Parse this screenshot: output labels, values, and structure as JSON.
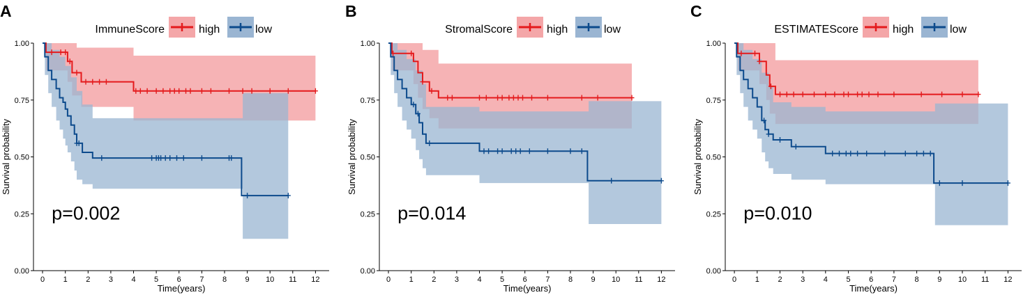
{
  "figure": {
    "panels": [
      {
        "letter": "A",
        "legend_title": "ImmuneScore",
        "p_value": "p=0.002"
      },
      {
        "letter": "B",
        "legend_title": "StromalScore",
        "p_value": "p=0.014"
      },
      {
        "letter": "C",
        "legend_title": "ESTIMATEScore",
        "p_value": "p=0.010"
      }
    ],
    "colors": {
      "high_line": "#e41a1c",
      "high_band": "#f4a6a8",
      "low_line": "#0c4a8c",
      "low_band": "#9ab5d2",
      "axis": "#000000"
    }
  },
  "chart_data": [
    {
      "type": "line",
      "title": "ImmuneScore",
      "xlabel": "Time(years)",
      "ylabel": "Survival probability",
      "xlim": [
        -0.4,
        12.6
      ],
      "ylim": [
        0,
        1
      ],
      "x_ticks": [
        0,
        1,
        2,
        3,
        4,
        5,
        6,
        7,
        8,
        9,
        10,
        11,
        12
      ],
      "y_ticks": [
        0,
        0.25,
        0.5,
        0.75,
        1
      ],
      "y_tick_labels": [
        "0.00",
        "0.25",
        "0.50",
        "0.75",
        "1.00"
      ],
      "annotation": "p=0.002",
      "series": [
        {
          "name": "high",
          "step": [
            [
              0,
              1
            ],
            [
              0.15,
              0.96
            ],
            [
              1.1,
              0.92
            ],
            [
              1.3,
              0.87
            ],
            [
              1.7,
              0.83
            ],
            [
              4.0,
              0.79
            ],
            [
              12.0,
              0.79
            ]
          ],
          "ci_upper": [
            [
              0,
              1
            ],
            [
              1.2,
              1
            ],
            [
              1.5,
              0.98
            ],
            [
              4.0,
              0.945
            ],
            [
              12.0,
              0.945
            ]
          ],
          "ci_lower": [
            [
              0,
              1
            ],
            [
              0.15,
              0.88
            ],
            [
              1.1,
              0.83
            ],
            [
              1.3,
              0.77
            ],
            [
              1.7,
              0.72
            ],
            [
              4.0,
              0.66
            ],
            [
              12.0,
              0.66
            ]
          ],
          "censors": [
            0.4,
            0.8,
            1.0,
            1.2,
            1.5,
            1.9,
            2.2,
            2.5,
            2.8,
            4.1,
            4.3,
            4.6,
            5.0,
            5.3,
            5.6,
            5.8,
            6.0,
            6.3,
            6.5,
            7.0,
            7.4,
            8.2,
            8.8,
            9.2,
            10.0,
            10.8,
            12.0
          ]
        },
        {
          "name": "low",
          "step": [
            [
              0,
              1
            ],
            [
              0.1,
              0.94
            ],
            [
              0.25,
              0.88
            ],
            [
              0.4,
              0.84
            ],
            [
              0.6,
              0.8
            ],
            [
              0.75,
              0.76
            ],
            [
              0.9,
              0.74
            ],
            [
              1.0,
              0.71
            ],
            [
              1.1,
              0.68
            ],
            [
              1.25,
              0.64
            ],
            [
              1.4,
              0.6
            ],
            [
              1.5,
              0.56
            ],
            [
              1.75,
              0.52
            ],
            [
              2.2,
              0.495
            ],
            [
              8.7,
              0.495
            ],
            [
              8.75,
              0.33
            ],
            [
              10.8,
              0.33
            ]
          ],
          "ci_upper": [
            [
              0,
              1
            ],
            [
              0.4,
              0.97
            ],
            [
              0.75,
              0.94
            ],
            [
              1.0,
              0.9
            ],
            [
              1.25,
              0.85
            ],
            [
              1.5,
              0.79
            ],
            [
              1.75,
              0.73
            ],
            [
              2.2,
              0.67
            ],
            [
              8.75,
              0.67
            ],
            [
              8.8,
              0.78
            ],
            [
              10.8,
              0.78
            ]
          ],
          "ci_lower": [
            [
              0,
              1
            ],
            [
              0.1,
              0.86
            ],
            [
              0.25,
              0.78
            ],
            [
              0.4,
              0.72
            ],
            [
              0.6,
              0.66
            ],
            [
              0.75,
              0.62
            ],
            [
              0.9,
              0.58
            ],
            [
              1.0,
              0.55
            ],
            [
              1.1,
              0.52
            ],
            [
              1.25,
              0.48
            ],
            [
              1.4,
              0.44
            ],
            [
              1.5,
              0.4
            ],
            [
              1.75,
              0.38
            ],
            [
              2.2,
              0.36
            ],
            [
              8.75,
              0.36
            ],
            [
              8.8,
              0.14
            ],
            [
              10.8,
              0.14
            ]
          ],
          "censors": [
            1.5,
            1.6,
            2.6,
            4.8,
            5.0,
            5.1,
            5.2,
            5.4,
            5.6,
            5.9,
            6.2,
            7.0,
            8.2,
            8.3,
            9.0,
            10.8
          ]
        }
      ]
    },
    {
      "type": "line",
      "title": "StromalScore",
      "xlabel": "Time(years)",
      "ylabel": "Survival probability",
      "xlim": [
        -0.4,
        12.6
      ],
      "ylim": [
        0,
        1
      ],
      "x_ticks": [
        0,
        1,
        2,
        3,
        4,
        5,
        6,
        7,
        8,
        9,
        10,
        11,
        12
      ],
      "y_ticks": [
        0,
        0.25,
        0.5,
        0.75,
        1
      ],
      "y_tick_labels": [
        "0.00",
        "0.25",
        "0.50",
        "0.75",
        "1.00"
      ],
      "annotation": "p=0.014",
      "series": [
        {
          "name": "high",
          "step": [
            [
              0,
              1
            ],
            [
              0.15,
              0.955
            ],
            [
              1.1,
              0.92
            ],
            [
              1.3,
              0.87
            ],
            [
              1.5,
              0.83
            ],
            [
              1.8,
              0.79
            ],
            [
              2.2,
              0.76
            ],
            [
              10.7,
              0.76
            ]
          ],
          "ci_upper": [
            [
              0,
              1
            ],
            [
              1.2,
              1
            ],
            [
              1.5,
              0.97
            ],
            [
              2.2,
              0.91
            ],
            [
              10.7,
              0.91
            ]
          ],
          "ci_lower": [
            [
              0,
              1
            ],
            [
              0.15,
              0.88
            ],
            [
              1.1,
              0.82
            ],
            [
              1.3,
              0.76
            ],
            [
              1.5,
              0.71
            ],
            [
              1.8,
              0.67
            ],
            [
              2.2,
              0.625
            ],
            [
              10.7,
              0.625
            ]
          ],
          "censors": [
            0.2,
            1.0,
            1.5,
            1.9,
            2.6,
            2.8,
            4.0,
            4.3,
            4.8,
            5.0,
            5.3,
            5.5,
            5.7,
            5.9,
            6.3,
            7.0,
            8.5,
            9.2,
            10.7
          ]
        },
        {
          "name": "low",
          "step": [
            [
              0,
              1
            ],
            [
              0.1,
              0.94
            ],
            [
              0.25,
              0.88
            ],
            [
              0.4,
              0.84
            ],
            [
              0.6,
              0.8
            ],
            [
              0.8,
              0.76
            ],
            [
              1.0,
              0.73
            ],
            [
              1.2,
              0.69
            ],
            [
              1.35,
              0.65
            ],
            [
              1.5,
              0.6
            ],
            [
              1.65,
              0.56
            ],
            [
              4.0,
              0.525
            ],
            [
              8.7,
              0.525
            ],
            [
              8.75,
              0.395
            ],
            [
              12.0,
              0.395
            ]
          ],
          "ci_upper": [
            [
              0,
              1
            ],
            [
              0.4,
              0.97
            ],
            [
              0.8,
              0.93
            ],
            [
              1.2,
              0.88
            ],
            [
              1.5,
              0.82
            ],
            [
              1.65,
              0.72
            ],
            [
              4.0,
              0.7
            ],
            [
              8.75,
              0.7
            ],
            [
              8.8,
              0.745
            ],
            [
              12.0,
              0.745
            ]
          ],
          "ci_lower": [
            [
              0,
              1
            ],
            [
              0.1,
              0.86
            ],
            [
              0.25,
              0.78
            ],
            [
              0.4,
              0.72
            ],
            [
              0.6,
              0.66
            ],
            [
              0.8,
              0.62
            ],
            [
              1.0,
              0.58
            ],
            [
              1.2,
              0.53
            ],
            [
              1.35,
              0.49
            ],
            [
              1.5,
              0.45
            ],
            [
              1.65,
              0.42
            ],
            [
              4.0,
              0.385
            ],
            [
              8.75,
              0.385
            ],
            [
              8.8,
              0.205
            ],
            [
              12.0,
              0.205
            ]
          ],
          "censors": [
            1.1,
            1.3,
            1.8,
            4.2,
            4.4,
            4.8,
            5.0,
            5.4,
            5.6,
            5.8,
            6.2,
            7.0,
            8.0,
            8.5,
            9.8,
            12.0
          ]
        }
      ]
    },
    {
      "type": "line",
      "title": "ESTIMATEScore",
      "xlabel": "Time(years)",
      "ylabel": "Survival probability",
      "xlim": [
        -0.4,
        12.6
      ],
      "ylim": [
        0,
        1
      ],
      "x_ticks": [
        0,
        1,
        2,
        3,
        4,
        5,
        6,
        7,
        8,
        9,
        10,
        11,
        12
      ],
      "y_ticks": [
        0,
        0.25,
        0.5,
        0.75,
        1
      ],
      "y_tick_labels": [
        "0.00",
        "0.25",
        "0.50",
        "0.75",
        "1.00"
      ],
      "annotation": "p=0.010",
      "series": [
        {
          "name": "high",
          "step": [
            [
              0,
              1
            ],
            [
              0.15,
              0.955
            ],
            [
              1.1,
              0.92
            ],
            [
              1.4,
              0.86
            ],
            [
              1.55,
              0.81
            ],
            [
              1.8,
              0.775
            ],
            [
              10.7,
              0.775
            ]
          ],
          "ci_upper": [
            [
              0,
              1
            ],
            [
              1.5,
              1
            ],
            [
              1.8,
              0.925
            ],
            [
              10.7,
              0.925
            ]
          ],
          "ci_lower": [
            [
              0,
              1
            ],
            [
              0.15,
              0.88
            ],
            [
              1.1,
              0.82
            ],
            [
              1.4,
              0.75
            ],
            [
              1.55,
              0.69
            ],
            [
              1.8,
              0.645
            ],
            [
              10.7,
              0.645
            ]
          ],
          "censors": [
            0.3,
            0.9,
            1.1,
            1.6,
            2.0,
            2.3,
            2.6,
            3.0,
            3.5,
            4.0,
            4.4,
            4.8,
            5.0,
            5.4,
            5.6,
            5.9,
            6.3,
            7.0,
            8.2,
            9.1,
            10.0,
            10.7
          ]
        },
        {
          "name": "low",
          "step": [
            [
              0,
              1
            ],
            [
              0.1,
              0.94
            ],
            [
              0.25,
              0.88
            ],
            [
              0.4,
              0.84
            ],
            [
              0.6,
              0.8
            ],
            [
              0.8,
              0.76
            ],
            [
              1.0,
              0.72
            ],
            [
              1.2,
              0.66
            ],
            [
              1.35,
              0.62
            ],
            [
              1.5,
              0.6
            ],
            [
              1.7,
              0.575
            ],
            [
              2.5,
              0.545
            ],
            [
              4.0,
              0.515
            ],
            [
              8.7,
              0.515
            ],
            [
              8.75,
              0.385
            ],
            [
              12.0,
              0.385
            ]
          ],
          "ci_upper": [
            [
              0,
              1
            ],
            [
              0.4,
              0.97
            ],
            [
              0.8,
              0.93
            ],
            [
              1.2,
              0.87
            ],
            [
              1.5,
              0.81
            ],
            [
              1.7,
              0.74
            ],
            [
              2.5,
              0.72
            ],
            [
              4.0,
              0.7
            ],
            [
              8.75,
              0.7
            ],
            [
              8.8,
              0.735
            ],
            [
              12.0,
              0.735
            ]
          ],
          "ci_lower": [
            [
              0,
              1
            ],
            [
              0.1,
              0.86
            ],
            [
              0.25,
              0.78
            ],
            [
              0.4,
              0.72
            ],
            [
              0.6,
              0.66
            ],
            [
              0.8,
              0.62
            ],
            [
              1.0,
              0.58
            ],
            [
              1.2,
              0.52
            ],
            [
              1.35,
              0.48
            ],
            [
              1.5,
              0.45
            ],
            [
              1.7,
              0.425
            ],
            [
              2.5,
              0.4
            ],
            [
              4.0,
              0.38
            ],
            [
              8.75,
              0.38
            ],
            [
              8.8,
              0.2
            ],
            [
              12.0,
              0.2
            ]
          ],
          "censors": [
            1.3,
            1.5,
            2.0,
            2.7,
            4.3,
            4.6,
            4.9,
            5.1,
            5.4,
            5.8,
            6.6,
            7.5,
            8.0,
            8.3,
            8.6,
            9.0,
            10.0,
            12.0
          ]
        }
      ]
    }
  ]
}
